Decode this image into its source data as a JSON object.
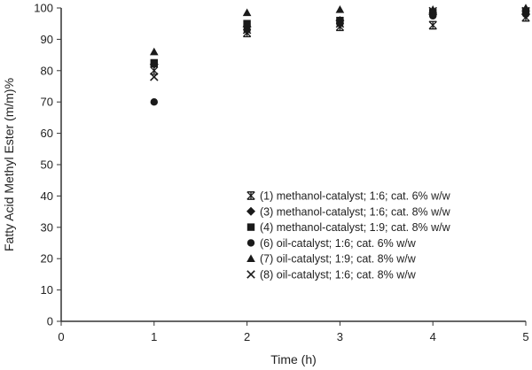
{
  "chart_data": {
    "type": "scatter",
    "title": "",
    "xlabel": "Time (h)",
    "ylabel": "Fatty Acid Methyl Ester (m/m)%",
    "xlim": [
      0,
      5
    ],
    "ylim": [
      0,
      100
    ],
    "xticks": [
      "0",
      "1",
      "2",
      "3",
      "4",
      "5"
    ],
    "yticks": [
      "0",
      "10",
      "20",
      "30",
      "40",
      "50",
      "60",
      "70",
      "80",
      "90",
      "100"
    ],
    "grid": false,
    "legend_position": "bottom-right",
    "marker_color": "#1a1a1a",
    "series": [
      {
        "name": "(1) methanol-catalyst; 1:6; cat. 6% w/w",
        "marker": "asterisk",
        "x": [
          1,
          2,
          3,
          4,
          5
        ],
        "y": [
          80,
          92,
          94,
          94.5,
          97
        ]
      },
      {
        "name": "(3) methanol-catalyst; 1:6; cat. 8% w/w",
        "marker": "diamond",
        "x": [
          1,
          2,
          3,
          4,
          5
        ],
        "y": [
          82,
          94,
          96,
          98,
          98
        ]
      },
      {
        "name": "(4) methanol-catalyst; 1:9; cat. 8% w/w",
        "marker": "square",
        "x": [
          1,
          2,
          3,
          4,
          5
        ],
        "y": [
          82.5,
          95,
          96,
          98.5,
          99
        ]
      },
      {
        "name": "(6) oil-catalyst; 1:6; cat. 6% w/w",
        "marker": "circle",
        "x": [
          1,
          2,
          3,
          4,
          5
        ],
        "y": [
          70,
          93,
          95,
          97.5,
          98
        ]
      },
      {
        "name": "(7) oil-catalyst; 1:9; cat. 8% w/w",
        "marker": "triangle",
        "x": [
          1,
          2,
          3,
          4,
          5
        ],
        "y": [
          86,
          98.5,
          99.5,
          99.5,
          100
        ]
      },
      {
        "name": "(8) oil-catalyst; 1:6; cat. 8% w/w",
        "marker": "x",
        "x": [
          1,
          2,
          3,
          4,
          5
        ],
        "y": [
          78,
          93,
          95,
          99,
          99
        ]
      }
    ]
  }
}
